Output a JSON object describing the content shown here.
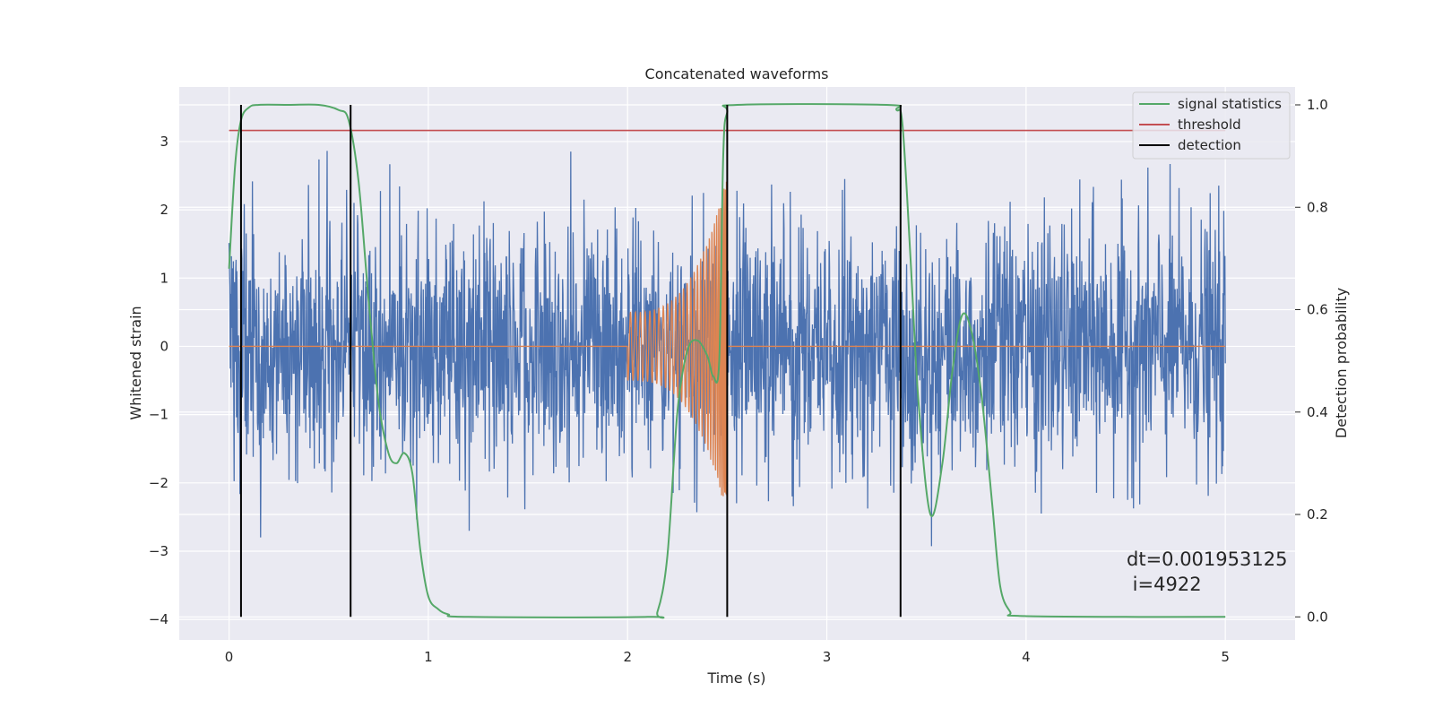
{
  "chart_data": {
    "type": "line",
    "title": "Concatenated waveforms",
    "xlabel": "Time (s)",
    "ylabel": "Whitened strain",
    "y2label": "Detection probability",
    "xlim": [
      -0.25,
      5.35
    ],
    "ylim": [
      -4.3,
      3.8
    ],
    "y2lim": [
      -0.045,
      1.035
    ],
    "x_ticks": [
      0,
      1,
      2,
      3,
      4,
      5
    ],
    "x_tick_labels": [
      "0",
      "1",
      "2",
      "3",
      "4",
      "5"
    ],
    "y_ticks": [
      -4,
      -3,
      -2,
      -1,
      0,
      1,
      2,
      3
    ],
    "y_tick_labels": [
      "−4",
      "−3",
      "−2",
      "−1",
      "0",
      "1",
      "2",
      "3"
    ],
    "y2_ticks": [
      0.0,
      0.2,
      0.4,
      0.6,
      0.8,
      1.0
    ],
    "y2_tick_labels": [
      "0.0",
      "0.2",
      "0.4",
      "0.6",
      "0.8",
      "1.0"
    ],
    "grid": true,
    "legend_position": "top-right",
    "legend": [
      {
        "label": "signal statistics",
        "color": "#55a868"
      },
      {
        "label": "threshold",
        "color": "#c44e52"
      },
      {
        "label": "detection",
        "color": "#000000"
      }
    ],
    "annotation": {
      "line1": "dt=0.001953125",
      "line2": " i=4922"
    },
    "series": [
      {
        "role": "strain",
        "color": "#4c72b0",
        "axis": "left",
        "t_range": [
          0,
          5
        ],
        "sample_step": 0.001953125,
        "envelope": "noise amplitude about ±2, peaks near ±3"
      },
      {
        "role": "waveform",
        "color": "#dd8452",
        "axis": "left",
        "t_range": [
          2.0,
          2.5
        ],
        "amplitude_start": 0.5,
        "amplitude_end": 2.5,
        "flat_value": 0
      },
      {
        "role": "statistic",
        "name": "signal statistics",
        "color": "#55a868",
        "axis": "right",
        "x": [
          0.0,
          0.03,
          0.06,
          0.1,
          0.15,
          0.3,
          0.45,
          0.55,
          0.6,
          0.65,
          0.7,
          0.75,
          0.8,
          0.84,
          0.88,
          0.92,
          0.96,
          1.0,
          1.05,
          1.1,
          1.2,
          2.1,
          2.15,
          2.2,
          2.25,
          2.3,
          2.35,
          2.4,
          2.43,
          2.46,
          2.48,
          2.5,
          2.55,
          3.3,
          3.35,
          3.38,
          3.42,
          3.46,
          3.52,
          3.58,
          3.63,
          3.68,
          3.73,
          3.78,
          3.83,
          3.87,
          3.92,
          3.96,
          4.5,
          5.0
        ],
        "y": [
          0.68,
          0.88,
          0.97,
          0.995,
          1.0,
          1.0,
          1.0,
          0.99,
          0.97,
          0.85,
          0.62,
          0.42,
          0.32,
          0.3,
          0.32,
          0.28,
          0.13,
          0.04,
          0.015,
          0.005,
          0.0,
          0.0,
          0.01,
          0.12,
          0.4,
          0.52,
          0.54,
          0.51,
          0.47,
          0.5,
          0.9,
          0.985,
          1.0,
          1.0,
          0.99,
          0.96,
          0.7,
          0.42,
          0.2,
          0.3,
          0.48,
          0.59,
          0.55,
          0.42,
          0.22,
          0.06,
          0.01,
          0.002,
          0.0,
          0.0
        ]
      },
      {
        "role": "threshold",
        "name": "threshold",
        "color": "#c44e52",
        "axis": "right",
        "x": [
          0,
          5
        ],
        "y": [
          0.95,
          0.95
        ]
      }
    ],
    "detections": {
      "name": "detection",
      "color": "#000000",
      "x": [
        0.06,
        0.61,
        2.5,
        3.37
      ],
      "y_range": [
        0.0,
        1.0
      ]
    }
  }
}
